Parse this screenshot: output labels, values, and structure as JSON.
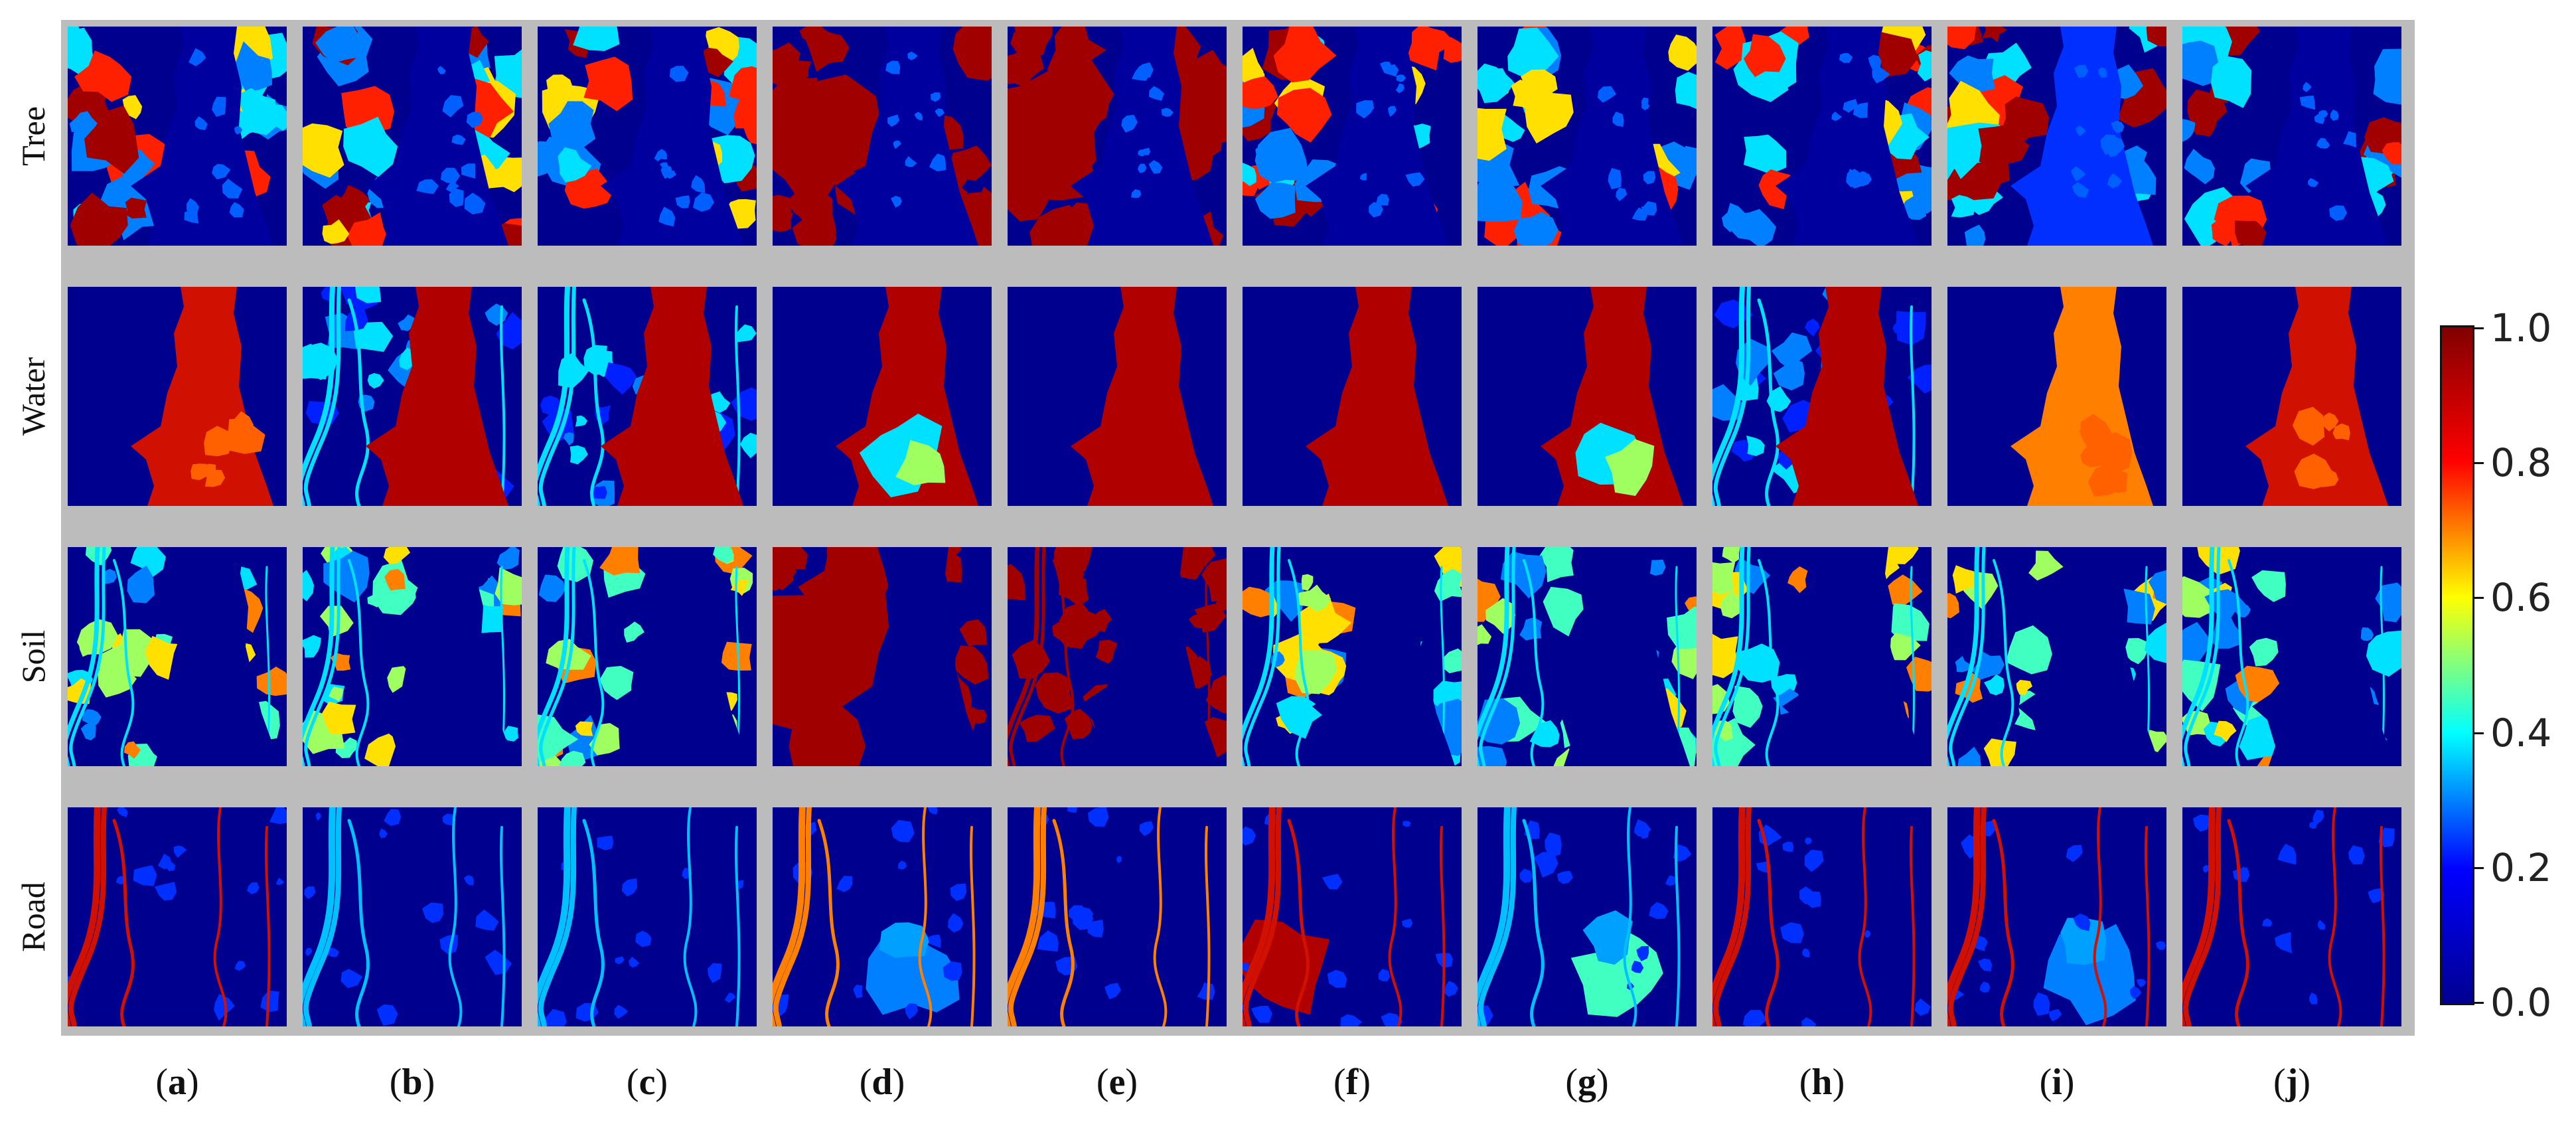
{
  "rows": [
    {
      "label": "Tree",
      "kind": "tree"
    },
    {
      "label": "Water",
      "kind": "water"
    },
    {
      "label": "Soil",
      "kind": "soil"
    },
    {
      "label": "Road",
      "kind": "road"
    }
  ],
  "columns": [
    {
      "label": "a"
    },
    {
      "label": "b"
    },
    {
      "label": "c"
    },
    {
      "label": "d"
    },
    {
      "label": "e"
    },
    {
      "label": "f"
    },
    {
      "label": "g"
    },
    {
      "label": "h"
    },
    {
      "label": "i"
    },
    {
      "label": "j"
    }
  ],
  "colorbar": {
    "colormap": "jet",
    "min": 0.0,
    "max": 1.0,
    "ticks": [
      "1.0",
      "0.8",
      "0.6",
      "0.4",
      "0.2",
      "0.0"
    ],
    "stops": [
      "#00008f",
      "#0000ff",
      "#00ffff",
      "#ffff00",
      "#ff0000",
      "#800000"
    ]
  },
  "background_color": "#bcbcbc"
}
